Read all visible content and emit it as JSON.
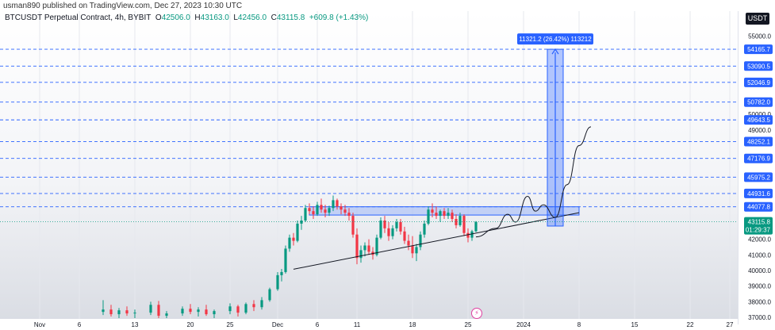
{
  "header": {
    "publisher": "usman890 published on TradingView.com, Dec 27, 2023 10:30 UTC"
  },
  "legend": {
    "symbol": "BTCUSDT Perpetual Contract, 4h, BYBIT",
    "open_label": "O",
    "open": "42506.0",
    "high_label": "H",
    "high": "43163.0",
    "low_label": "L",
    "low": "42456.0",
    "close_label": "C",
    "close": "43115.8",
    "change": "+609.8 (+1.43%)"
  },
  "currency": "USDT",
  "colors": {
    "up": "#089981",
    "down": "#f23645",
    "level_line": "#2962ff",
    "level_label": "#2962ff",
    "price_label": "#089981",
    "projection": "#2962ff"
  },
  "chart_data": {
    "type": "candlestick",
    "x_ticks": [
      {
        "label": "Nov",
        "day": -30
      },
      {
        "label": "6",
        "day": -25
      },
      {
        "label": "13",
        "day": -18
      },
      {
        "label": "20",
        "day": -11
      },
      {
        "label": "25",
        "day": -6
      },
      {
        "label": "Dec",
        "day": 0
      },
      {
        "label": "6",
        "day": 5
      },
      {
        "label": "11",
        "day": 10
      },
      {
        "label": "18",
        "day": 17
      },
      {
        "label": "25",
        "day": 24
      },
      {
        "label": "2024",
        "day": 31
      },
      {
        "label": "8",
        "day": 38
      },
      {
        "label": "15",
        "day": 45
      },
      {
        "label": "22",
        "day": 52
      },
      {
        "label": "27",
        "day": 57
      }
    ],
    "y_ticks": [
      55000,
      50000,
      49000,
      42000,
      41000,
      40000,
      39000,
      38000,
      37000
    ],
    "ylim": [
      36900,
      56000
    ],
    "levels": [
      54165.7,
      53090.5,
      52046.9,
      50782.0,
      49643.5,
      48252.1,
      47176.9,
      45975.2,
      44931.6,
      44077.8
    ],
    "current_price": "43115.8",
    "countdown": "01:29:37",
    "measure": {
      "label": "11321.2 (26.42%) 113212",
      "from_price": 42844.5,
      "to_price": 54165.7,
      "from_day": 34,
      "to_day": 36
    },
    "resistance_zone": {
      "from_day": 4,
      "to_day": 38,
      "low": 43550,
      "high": 44080
    },
    "trendline": [
      {
        "day": 2,
        "price": 40080
      },
      {
        "day": 38,
        "price": 43700
      }
    ],
    "projection_path": [
      {
        "day": 25,
        "price": 42150
      },
      {
        "day": 27.5,
        "price": 42700
      },
      {
        "day": 29,
        "price": 43600
      },
      {
        "day": 30,
        "price": 43100
      },
      {
        "day": 31.5,
        "price": 44750
      },
      {
        "day": 32.5,
        "price": 43800
      },
      {
        "day": 33.5,
        "price": 44200
      },
      {
        "day": 35,
        "price": 43400
      },
      {
        "day": 36.5,
        "price": 45500
      },
      {
        "day": 38,
        "price": 48000
      },
      {
        "day": 39.5,
        "price": 49200
      }
    ],
    "candles": [
      {
        "day": -22,
        "o": 37350,
        "h": 38100,
        "l": 37150,
        "c": 37500
      },
      {
        "day": -21,
        "o": 37500,
        "h": 37800,
        "l": 37050,
        "c": 37200
      },
      {
        "day": -20,
        "o": 37200,
        "h": 37600,
        "l": 36950,
        "c": 37450
      },
      {
        "day": -19,
        "o": 37450,
        "h": 37700,
        "l": 37100,
        "c": 37250
      },
      {
        "day": -18,
        "o": 37250,
        "h": 37500,
        "l": 36950,
        "c": 37300
      },
      {
        "day": -16,
        "o": 37300,
        "h": 38000,
        "l": 37150,
        "c": 37800
      },
      {
        "day": -15,
        "o": 37800,
        "h": 38050,
        "l": 36950,
        "c": 37100
      },
      {
        "day": -14,
        "o": 37100,
        "h": 37400,
        "l": 36950,
        "c": 37250
      },
      {
        "day": -12,
        "o": 37250,
        "h": 37700,
        "l": 37100,
        "c": 37550
      },
      {
        "day": -11,
        "o": 37550,
        "h": 37850,
        "l": 37200,
        "c": 37350
      },
      {
        "day": -10,
        "o": 37350,
        "h": 37650,
        "l": 37050,
        "c": 37500
      },
      {
        "day": -9,
        "o": 37500,
        "h": 37800,
        "l": 37100,
        "c": 37200
      },
      {
        "day": -8,
        "o": 37200,
        "h": 37500,
        "l": 36950,
        "c": 37400
      },
      {
        "day": -6,
        "o": 37400,
        "h": 37900,
        "l": 37200,
        "c": 37700
      },
      {
        "day": -5,
        "o": 37700,
        "h": 37800,
        "l": 37050,
        "c": 37300
      },
      {
        "day": -4,
        "o": 37300,
        "h": 37950,
        "l": 37200,
        "c": 37850
      },
      {
        "day": -3,
        "o": 37850,
        "h": 38100,
        "l": 37400,
        "c": 37650
      },
      {
        "day": -2,
        "o": 37650,
        "h": 38300,
        "l": 37500,
        "c": 38100
      },
      {
        "day": -1,
        "o": 38100,
        "h": 38900,
        "l": 38000,
        "c": 38800
      },
      {
        "day": 0,
        "o": 38800,
        "h": 39900,
        "l": 38700,
        "c": 39700
      },
      {
        "day": 0.5,
        "o": 39700,
        "h": 40100,
        "l": 39300,
        "c": 39900
      },
      {
        "day": 1,
        "o": 39900,
        "h": 41600,
        "l": 39800,
        "c": 41400
      },
      {
        "day": 1.5,
        "o": 41400,
        "h": 42300,
        "l": 41200,
        "c": 42100
      },
      {
        "day": 2,
        "o": 42100,
        "h": 42400,
        "l": 41600,
        "c": 41900
      },
      {
        "day": 2.5,
        "o": 41900,
        "h": 43200,
        "l": 41800,
        "c": 43000
      },
      {
        "day": 3,
        "o": 43000,
        "h": 43500,
        "l": 42600,
        "c": 43200
      },
      {
        "day": 3.5,
        "o": 43200,
        "h": 44200,
        "l": 43100,
        "c": 44000
      },
      {
        "day": 4,
        "o": 44000,
        "h": 44300,
        "l": 43600,
        "c": 43800
      },
      {
        "day": 4.5,
        "o": 43800,
        "h": 44100,
        "l": 43300,
        "c": 43600
      },
      {
        "day": 5,
        "o": 43600,
        "h": 44400,
        "l": 43500,
        "c": 44200
      },
      {
        "day": 5.5,
        "o": 44200,
        "h": 44600,
        "l": 43700,
        "c": 43900
      },
      {
        "day": 6,
        "o": 43900,
        "h": 44200,
        "l": 43400,
        "c": 43700
      },
      {
        "day": 6.5,
        "o": 43700,
        "h": 44150,
        "l": 43500,
        "c": 44000
      },
      {
        "day": 7,
        "o": 44000,
        "h": 44800,
        "l": 43800,
        "c": 44500
      },
      {
        "day": 7.5,
        "o": 44500,
        "h": 44600,
        "l": 43900,
        "c": 44100
      },
      {
        "day": 8,
        "o": 44100,
        "h": 44300,
        "l": 43600,
        "c": 43900
      },
      {
        "day": 8.5,
        "o": 43900,
        "h": 44200,
        "l": 43500,
        "c": 43700
      },
      {
        "day": 9,
        "o": 43700,
        "h": 44000,
        "l": 43200,
        "c": 43500
      },
      {
        "day": 9.5,
        "o": 43500,
        "h": 43700,
        "l": 42100,
        "c": 42300
      },
      {
        "day": 10,
        "o": 42300,
        "h": 42700,
        "l": 40400,
        "c": 40800
      },
      {
        "day": 10.5,
        "o": 40800,
        "h": 41600,
        "l": 40500,
        "c": 41300
      },
      {
        "day": 11,
        "o": 41300,
        "h": 41800,
        "l": 40900,
        "c": 41600
      },
      {
        "day": 11.5,
        "o": 41600,
        "h": 42000,
        "l": 41000,
        "c": 41200
      },
      {
        "day": 12,
        "o": 41200,
        "h": 41500,
        "l": 40700,
        "c": 41000
      },
      {
        "day": 12.5,
        "o": 41000,
        "h": 42300,
        "l": 40900,
        "c": 42100
      },
      {
        "day": 13,
        "o": 42100,
        "h": 43400,
        "l": 42000,
        "c": 43200
      },
      {
        "day": 13.5,
        "o": 43200,
        "h": 43500,
        "l": 42400,
        "c": 42700
      },
      {
        "day": 14,
        "o": 42700,
        "h": 43100,
        "l": 41900,
        "c": 42200
      },
      {
        "day": 14.5,
        "o": 42200,
        "h": 42900,
        "l": 42000,
        "c": 42700
      },
      {
        "day": 15,
        "o": 42700,
        "h": 43300,
        "l": 42500,
        "c": 43100
      },
      {
        "day": 15.5,
        "o": 43100,
        "h": 43300,
        "l": 42300,
        "c": 42500
      },
      {
        "day": 16,
        "o": 42500,
        "h": 42800,
        "l": 41700,
        "c": 41900
      },
      {
        "day": 16.5,
        "o": 41900,
        "h": 42300,
        "l": 41300,
        "c": 41600
      },
      {
        "day": 17,
        "o": 41600,
        "h": 42200,
        "l": 40800,
        "c": 41100
      },
      {
        "day": 17.5,
        "o": 41100,
        "h": 41700,
        "l": 40600,
        "c": 41500
      },
      {
        "day": 18,
        "o": 41500,
        "h": 42500,
        "l": 41300,
        "c": 42300
      },
      {
        "day": 18.5,
        "o": 42300,
        "h": 43200,
        "l": 42100,
        "c": 43000
      },
      {
        "day": 19,
        "o": 43000,
        "h": 44100,
        "l": 42900,
        "c": 43900
      },
      {
        "day": 19.5,
        "o": 43900,
        "h": 44300,
        "l": 43400,
        "c": 43700
      },
      {
        "day": 20,
        "o": 43700,
        "h": 44100,
        "l": 43300,
        "c": 43500
      },
      {
        "day": 20.5,
        "o": 43500,
        "h": 43900,
        "l": 43100,
        "c": 43800
      },
      {
        "day": 21,
        "o": 43800,
        "h": 44000,
        "l": 43300,
        "c": 43500
      },
      {
        "day": 21.5,
        "o": 43500,
        "h": 44000,
        "l": 43300,
        "c": 43700
      },
      {
        "day": 22,
        "o": 43700,
        "h": 43900,
        "l": 43100,
        "c": 43300
      },
      {
        "day": 22.5,
        "o": 43300,
        "h": 43600,
        "l": 42700,
        "c": 42900
      },
      {
        "day": 23,
        "o": 42900,
        "h": 43700,
        "l": 42800,
        "c": 43500
      },
      {
        "day": 23.5,
        "o": 43500,
        "h": 43600,
        "l": 42200,
        "c": 42400
      },
      {
        "day": 24,
        "o": 42400,
        "h": 42700,
        "l": 41800,
        "c": 42100
      },
      {
        "day": 24.5,
        "o": 42100,
        "h": 42600,
        "l": 41900,
        "c": 42506
      },
      {
        "day": 25,
        "o": 42506,
        "h": 43163,
        "l": 42456,
        "c": 43115.8
      }
    ]
  }
}
